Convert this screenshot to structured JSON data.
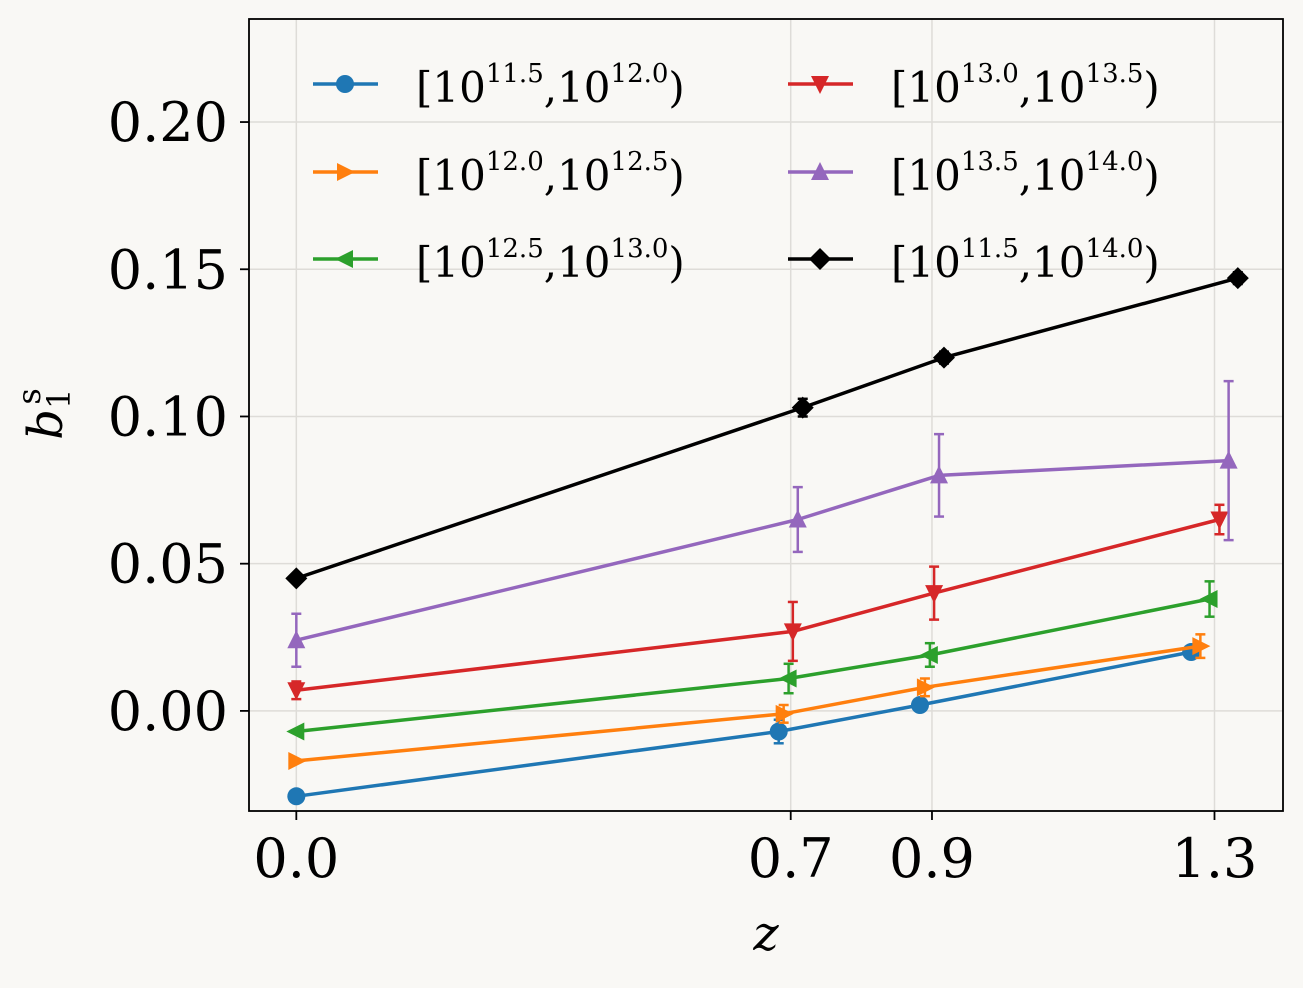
{
  "chart_data": {
    "type": "line",
    "xlabel": "z",
    "ylabel": {
      "base": "b",
      "sub": "1",
      "sup": "s"
    },
    "xticks": [
      0.0,
      0.7,
      0.9,
      1.3
    ],
    "xtick_labels": [
      "0.0",
      "0.7",
      "0.9",
      "1.3"
    ],
    "yticks": [
      0.0,
      0.05,
      0.1,
      0.15,
      0.2
    ],
    "ytick_labels": [
      "0.00",
      "0.05",
      "0.10",
      "0.15",
      "0.20"
    ],
    "xlim": [
      -0.067,
      1.397
    ],
    "ylim": [
      -0.034,
      0.235
    ],
    "grid": true,
    "legend_location": "upper-left",
    "legend_columns": 2,
    "series": [
      {
        "name": "[10^11.5,10^12.0)",
        "label_parts": [
          "[10",
          "11.5",
          ",10",
          "12.0",
          ")"
        ],
        "color": "#1f77b4",
        "marker": "circle",
        "x": [
          0.0,
          0.683,
          0.883,
          1.267
        ],
        "y": [
          -0.029,
          -0.007,
          0.002,
          0.02
        ],
        "err": [
          0.0,
          0.004,
          0.002,
          0.002
        ]
      },
      {
        "name": "[10^12.0,10^12.5)",
        "label_parts": [
          "[10",
          "12.0",
          ",10",
          "12.5",
          ")"
        ],
        "color": "#ff7f0e",
        "marker": "triangle-right",
        "x": [
          0.0,
          0.69,
          0.89,
          1.28
        ],
        "y": [
          -0.017,
          -0.001,
          0.008,
          0.022
        ],
        "err": [
          0.0,
          0.003,
          0.003,
          0.004
        ]
      },
      {
        "name": "[10^12.5,10^13.0)",
        "label_parts": [
          "[10",
          "12.5",
          ",10",
          "13.0",
          ")"
        ],
        "color": "#2ca02c",
        "marker": "triangle-left",
        "x": [
          0.0,
          0.697,
          0.897,
          1.293
        ],
        "y": [
          -0.007,
          0.011,
          0.019,
          0.038
        ],
        "err": [
          0.0,
          0.005,
          0.004,
          0.006
        ]
      },
      {
        "name": "[10^13.0,10^13.5)",
        "label_parts": [
          "[10",
          "13.0",
          ",10",
          "13.5",
          ")"
        ],
        "color": "#d62728",
        "marker": "triangle-down",
        "x": [
          0.0,
          0.703,
          0.903,
          1.307
        ],
        "y": [
          0.007,
          0.027,
          0.04,
          0.065
        ],
        "err": [
          0.003,
          0.01,
          0.009,
          0.005
        ]
      },
      {
        "name": "[10^13.5,10^14.0)",
        "label_parts": [
          "[10",
          "13.5",
          ",10",
          "14.0",
          ")"
        ],
        "color": "#9467bd",
        "marker": "triangle-up",
        "x": [
          0.0,
          0.71,
          0.91,
          1.32
        ],
        "y": [
          0.024,
          0.065,
          0.08,
          0.085
        ],
        "err": [
          0.009,
          0.011,
          0.014,
          0.027
        ]
      },
      {
        "name": "[10^11.5,10^14.0)",
        "label_parts": [
          "[10",
          "11.5",
          ",10",
          "14.0",
          ")"
        ],
        "color": "#000000",
        "marker": "diamond",
        "x": [
          0.0,
          0.717,
          0.917,
          1.333
        ],
        "y": [
          0.045,
          0.103,
          0.12,
          0.147
        ],
        "err": [
          0.0,
          0.003,
          0.002,
          0.002
        ]
      }
    ]
  }
}
